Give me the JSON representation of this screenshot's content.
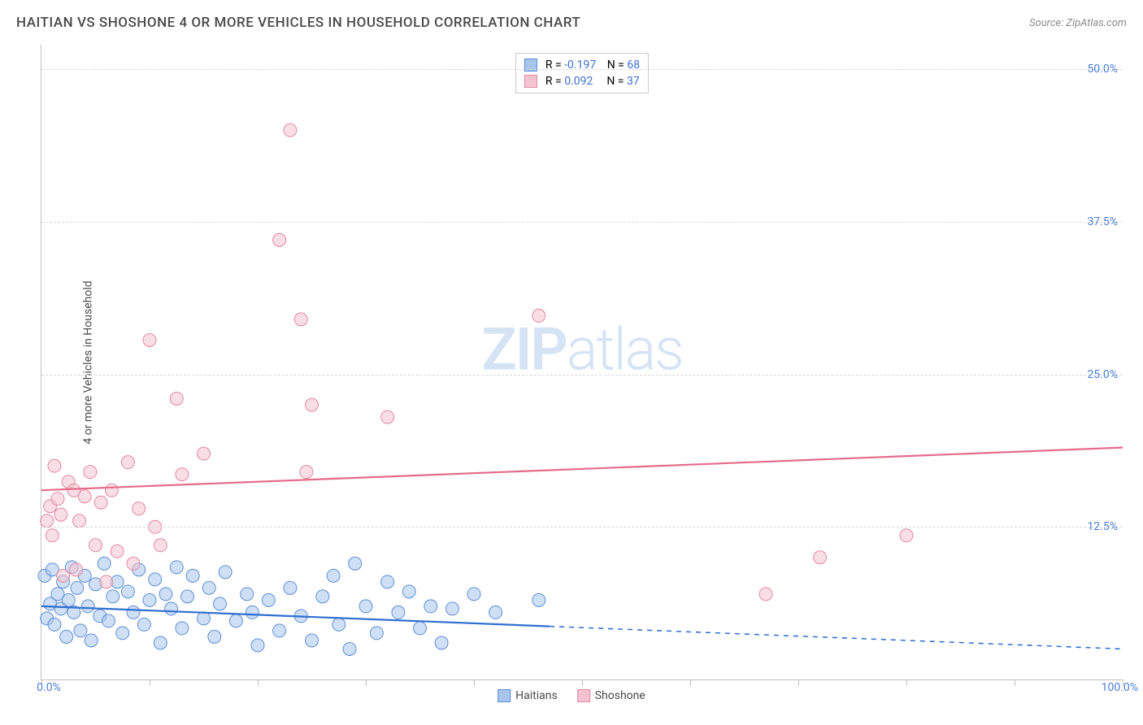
{
  "header": {
    "title": "HAITIAN VS SHOSHONE 4 OR MORE VEHICLES IN HOUSEHOLD CORRELATION CHART",
    "source": "Source: ZipAtlas.com"
  },
  "watermark": {
    "zip": "ZIP",
    "atlas": "atlas"
  },
  "chart": {
    "type": "scatter",
    "y_label": "4 or more Vehicles in Household",
    "x_range": [
      0,
      100
    ],
    "y_range": [
      0,
      52
    ],
    "y_ticks": [
      12.5,
      25.0,
      37.5,
      50.0
    ],
    "y_tick_labels": [
      "12.5%",
      "25.0%",
      "37.5%",
      "50.0%"
    ],
    "x_ticks": [
      0,
      10,
      20,
      30,
      40,
      50,
      60,
      70,
      80,
      90,
      100
    ],
    "x_end_labels": {
      "min": "0.0%",
      "max": "100.0%"
    },
    "background_color": "#ffffff",
    "grid_color": "#d8d8d8",
    "marker_radius": 8,
    "marker_opacity": 0.55,
    "line_width": 2.2,
    "series": [
      {
        "name": "Haitians",
        "color_fill": "#a8c5ec",
        "color_stroke": "#5c8fd6",
        "line_color": "#2f6fd0",
        "R": "-0.197",
        "N": "68",
        "trend": {
          "x1": 0,
          "y1": 6.0,
          "x2": 100,
          "y2": 2.5,
          "solid_until": 47
        },
        "points": [
          [
            0.3,
            8.5
          ],
          [
            0.5,
            5.0
          ],
          [
            0.8,
            6.2
          ],
          [
            1.0,
            9.0
          ],
          [
            1.2,
            4.5
          ],
          [
            1.5,
            7.0
          ],
          [
            1.8,
            5.8
          ],
          [
            2.0,
            8.0
          ],
          [
            2.3,
            3.5
          ],
          [
            2.5,
            6.5
          ],
          [
            2.8,
            9.2
          ],
          [
            3.0,
            5.5
          ],
          [
            3.3,
            7.5
          ],
          [
            3.6,
            4.0
          ],
          [
            4.0,
            8.5
          ],
          [
            4.3,
            6.0
          ],
          [
            4.6,
            3.2
          ],
          [
            5.0,
            7.8
          ],
          [
            5.4,
            5.2
          ],
          [
            5.8,
            9.5
          ],
          [
            6.2,
            4.8
          ],
          [
            6.6,
            6.8
          ],
          [
            7.0,
            8.0
          ],
          [
            7.5,
            3.8
          ],
          [
            8.0,
            7.2
          ],
          [
            8.5,
            5.5
          ],
          [
            9.0,
            9.0
          ],
          [
            9.5,
            4.5
          ],
          [
            10.0,
            6.5
          ],
          [
            10.5,
            8.2
          ],
          [
            11.0,
            3.0
          ],
          [
            11.5,
            7.0
          ],
          [
            12.0,
            5.8
          ],
          [
            12.5,
            9.2
          ],
          [
            13.0,
            4.2
          ],
          [
            13.5,
            6.8
          ],
          [
            14.0,
            8.5
          ],
          [
            15.0,
            5.0
          ],
          [
            15.5,
            7.5
          ],
          [
            16.0,
            3.5
          ],
          [
            16.5,
            6.2
          ],
          [
            17.0,
            8.8
          ],
          [
            18.0,
            4.8
          ],
          [
            19.0,
            7.0
          ],
          [
            19.5,
            5.5
          ],
          [
            20.0,
            2.8
          ],
          [
            21.0,
            6.5
          ],
          [
            22.0,
            4.0
          ],
          [
            23.0,
            7.5
          ],
          [
            24.0,
            5.2
          ],
          [
            25.0,
            3.2
          ],
          [
            26.0,
            6.8
          ],
          [
            27.0,
            8.5
          ],
          [
            27.5,
            4.5
          ],
          [
            28.5,
            2.5
          ],
          [
            29.0,
            9.5
          ],
          [
            30.0,
            6.0
          ],
          [
            31.0,
            3.8
          ],
          [
            32.0,
            8.0
          ],
          [
            33.0,
            5.5
          ],
          [
            34.0,
            7.2
          ],
          [
            35.0,
            4.2
          ],
          [
            36.0,
            6.0
          ],
          [
            37.0,
            3.0
          ],
          [
            38.0,
            5.8
          ],
          [
            40.0,
            7.0
          ],
          [
            42.0,
            5.5
          ],
          [
            46.0,
            6.5
          ]
        ]
      },
      {
        "name": "Shoshone",
        "color_fill": "#f5c3cf",
        "color_stroke": "#e08aa0",
        "line_color": "#e56b8a",
        "R": "0.092",
        "N": "37",
        "trend": {
          "x1": 0,
          "y1": 15.5,
          "x2": 100,
          "y2": 19.0,
          "solid_until": 100
        },
        "points": [
          [
            0.5,
            13.0
          ],
          [
            0.8,
            14.2
          ],
          [
            1.0,
            11.8
          ],
          [
            1.2,
            17.5
          ],
          [
            1.5,
            14.8
          ],
          [
            1.8,
            13.5
          ],
          [
            2.5,
            16.2
          ],
          [
            3.0,
            15.5
          ],
          [
            3.5,
            13.0
          ],
          [
            4.0,
            15.0
          ],
          [
            4.5,
            17.0
          ],
          [
            5.0,
            11.0
          ],
          [
            5.5,
            14.5
          ],
          [
            6.5,
            15.5
          ],
          [
            7.0,
            10.5
          ],
          [
            8.0,
            17.8
          ],
          [
            9.0,
            14.0
          ],
          [
            10.0,
            27.8
          ],
          [
            10.5,
            12.5
          ],
          [
            11.0,
            11.0
          ],
          [
            12.5,
            23.0
          ],
          [
            13.0,
            16.8
          ],
          [
            15.0,
            18.5
          ],
          [
            22.0,
            36.0
          ],
          [
            23.0,
            45.0
          ],
          [
            24.0,
            29.5
          ],
          [
            25.0,
            22.5
          ],
          [
            24.5,
            17.0
          ],
          [
            32.0,
            21.5
          ],
          [
            46.0,
            29.8
          ],
          [
            67.0,
            7.0
          ],
          [
            72.0,
            10.0
          ],
          [
            80.0,
            11.8
          ],
          [
            2.0,
            8.5
          ],
          [
            3.2,
            9.0
          ],
          [
            6.0,
            8.0
          ],
          [
            8.5,
            9.5
          ]
        ]
      }
    ]
  },
  "legend": {
    "items": [
      {
        "label": "Haitians",
        "fill": "#a8c5ec",
        "stroke": "#5c8fd6"
      },
      {
        "label": "Shoshone",
        "fill": "#f5c3cf",
        "stroke": "#e08aa0"
      }
    ]
  }
}
